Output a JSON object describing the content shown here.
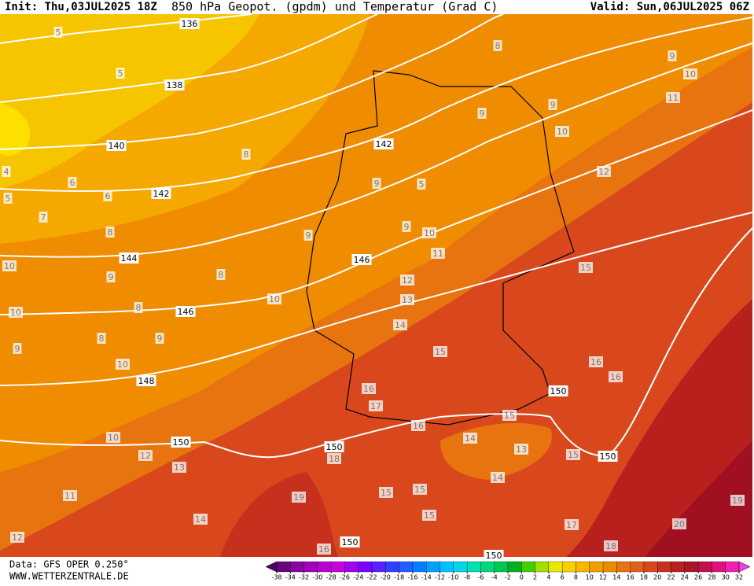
{
  "header": {
    "init": "Init: Thu,03JUL2025 18Z",
    "title": "850 hPa Geopot. (gpdm) und Temperatur (Grad C)",
    "valid": "Valid: Sun,06JUL2025 06Z"
  },
  "map": {
    "geopotential_labels": [
      136,
      138,
      140,
      142,
      142,
      144,
      146,
      146,
      148,
      150,
      150,
      150,
      150,
      150,
      150
    ],
    "temperature_labels": [
      5,
      5,
      4,
      5,
      6,
      6,
      7,
      8,
      8,
      9,
      8,
      8,
      9,
      8,
      9,
      10,
      10,
      10,
      10,
      10,
      9,
      9,
      9,
      5,
      10,
      11,
      12,
      13,
      14,
      15,
      8,
      9,
      10,
      11,
      9,
      9,
      10,
      12,
      15,
      16,
      16,
      16,
      17,
      16,
      15,
      14,
      13,
      15,
      14,
      12,
      13,
      11,
      14,
      12,
      19,
      18,
      15,
      15,
      15,
      16,
      17,
      18,
      20,
      19
    ]
  },
  "footer": {
    "data": "Data: GFS OPER 0.250°",
    "site": "WWW.WETTERZENTRALE.DE"
  },
  "colorbar": {
    "ticks": [
      -38,
      -34,
      -32,
      -30,
      -28,
      -26,
      -24,
      -22,
      -20,
      -18,
      -16,
      -14,
      -12,
      -10,
      -8,
      -6,
      -4,
      -2,
      0,
      2,
      4,
      6,
      8,
      10,
      12,
      14,
      16,
      18,
      20,
      22,
      24,
      26,
      28,
      30,
      32
    ],
    "colors": [
      "#4b0064",
      "#6a007f",
      "#8a00a0",
      "#a000b8",
      "#b800d0",
      "#c800e0",
      "#a000f0",
      "#7a00ff",
      "#5a20ff",
      "#3040ff",
      "#2060ff",
      "#0080ff",
      "#00a0ff",
      "#00c0ff",
      "#00d8e8",
      "#00e0b0",
      "#00d880",
      "#00c850",
      "#00b020",
      "#40d000",
      "#a0e000",
      "#e8e800",
      "#f8d000",
      "#f8b800",
      "#f0a000",
      "#ee8a00",
      "#e87410",
      "#e0601a",
      "#d8481c",
      "#c8301e",
      "#b8201e",
      "#a81828",
      "#c01050",
      "#e01080",
      "#f020b0",
      "#f040e0"
    ]
  }
}
